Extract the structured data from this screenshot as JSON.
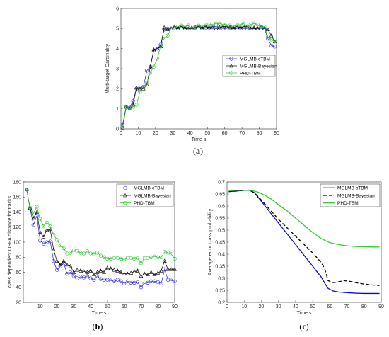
{
  "chart_data": [
    {
      "type": "line",
      "panel_label": "a",
      "xlabel": "Time s",
      "ylabel": "Multi-target Cardinality",
      "xlim": [
        0,
        90
      ],
      "ylim": [
        0,
        6
      ],
      "xticks": [
        0,
        10,
        20,
        30,
        40,
        50,
        60,
        70,
        80,
        90
      ],
      "yticks": [
        0,
        1,
        2,
        3,
        4,
        5,
        6
      ],
      "legend": "right",
      "grid": false,
      "x": [
        1,
        3,
        5,
        7,
        9,
        11,
        13,
        15,
        17,
        19,
        21,
        23,
        25,
        27,
        29,
        31,
        33,
        35,
        37,
        39,
        41,
        43,
        45,
        47,
        49,
        51,
        53,
        55,
        57,
        59,
        61,
        63,
        65,
        67,
        69,
        71,
        73,
        75,
        77,
        79,
        81,
        83,
        85,
        87,
        89
      ],
      "series": [
        {
          "name": "MGLMB-cTBM",
          "color": "#2020d0",
          "marker": "circle",
          "dash": "",
          "values": [
            0.2,
            1.1,
            1.05,
            1.4,
            2.0,
            2.05,
            2.1,
            2.9,
            3.1,
            3.9,
            4.0,
            4.2,
            4.95,
            5.0,
            5.0,
            5.05,
            5.0,
            5.1,
            5.0,
            5.05,
            5.0,
            5.05,
            5.1,
            5.0,
            5.05,
            5.05,
            5.1,
            5.1,
            5.05,
            5.0,
            5.0,
            5.05,
            5.0,
            5.0,
            5.05,
            5.0,
            5.0,
            5.05,
            5.0,
            5.0,
            5.0,
            5.0,
            4.5,
            4.15,
            4.1
          ]
        },
        {
          "name": "MGLMB-Bayesian",
          "color": "#000000",
          "marker": "triangle",
          "dash": "",
          "values": [
            0.05,
            1.1,
            1.0,
            1.2,
            2.05,
            2.0,
            2.0,
            2.2,
            3.1,
            3.95,
            4.0,
            4.1,
            5.05,
            4.95,
            5.0,
            5.1,
            5.05,
            5.1,
            5.05,
            5.0,
            5.05,
            5.05,
            5.1,
            5.05,
            5.1,
            5.05,
            5.05,
            5.0,
            5.05,
            5.1,
            5.1,
            5.05,
            5.05,
            5.1,
            5.05,
            5.1,
            5.1,
            5.0,
            5.05,
            5.0,
            5.1,
            5.0,
            4.95,
            4.65,
            4.35
          ]
        },
        {
          "name": "PHD-TBM",
          "color": "#20c020",
          "marker": "circle",
          "dash": "",
          "values": [
            0.05,
            1.05,
            1.0,
            1.1,
            1.2,
            1.85,
            2.1,
            2.3,
            2.8,
            3.1,
            3.5,
            4.15,
            4.5,
            4.65,
            5.0,
            5.05,
            5.1,
            5.15,
            5.1,
            5.15,
            5.0,
            5.1,
            5.15,
            5.1,
            5.15,
            5.2,
            5.2,
            5.25,
            5.25,
            5.2,
            5.2,
            5.15,
            5.1,
            5.15,
            5.2,
            5.25,
            5.1,
            5.2,
            5.25,
            5.2,
            5.1,
            5.1,
            4.6,
            4.45,
            4.35
          ]
        }
      ]
    },
    {
      "type": "line",
      "panel_label": "b",
      "xlabel": "Time s",
      "ylabel": "class dependent OSPA distance for tracks",
      "xlim": [
        0,
        90
      ],
      "ylim": [
        20,
        180
      ],
      "xticks": [
        10,
        20,
        30,
        40,
        50,
        60,
        70,
        80,
        90
      ],
      "yticks": [
        20,
        40,
        60,
        80,
        100,
        120,
        140,
        160,
        180
      ],
      "legend": "top-right",
      "grid": false,
      "x": [
        2,
        4,
        6,
        8,
        10,
        12,
        14,
        16,
        18,
        20,
        22,
        24,
        26,
        28,
        30,
        32,
        34,
        36,
        38,
        40,
        42,
        44,
        46,
        48,
        50,
        52,
        54,
        56,
        58,
        60,
        62,
        64,
        66,
        68,
        70,
        72,
        74,
        76,
        78,
        80,
        82,
        84,
        86,
        88,
        90
      ],
      "series": [
        {
          "name": "MGLMB-cTBM",
          "color": "#2020d0",
          "marker": "circle",
          "dash": "",
          "values": [
            170,
            145,
            123,
            135,
            102,
            98,
            100,
            101,
            75,
            63,
            68,
            72,
            58,
            60,
            55,
            52,
            54,
            53,
            55,
            52,
            50,
            55,
            51,
            50,
            50,
            49,
            48,
            50,
            48,
            45,
            48,
            46,
            46,
            47,
            40,
            45,
            46,
            48,
            48,
            47,
            45,
            64,
            50,
            49,
            48
          ]
        },
        {
          "name": "MGLMB-Bayesian",
          "color": "#000000",
          "marker": "triangle",
          "dash": "",
          "values": [
            170,
            145,
            132,
            140,
            113,
            107,
            116,
            117,
            90,
            75,
            70,
            75,
            70,
            68,
            60,
            63,
            62,
            61,
            60,
            62,
            57,
            60,
            62,
            60,
            66,
            65,
            63,
            62,
            60,
            58,
            58,
            59,
            61,
            62,
            55,
            58,
            57,
            60,
            57,
            59,
            62,
            75,
            64,
            64,
            64
          ]
        },
        {
          "name": "PHD-TBM",
          "color": "#20c020",
          "marker": "circle",
          "dash": "",
          "values": [
            170,
            146,
            138,
            147,
            131,
            121,
            126,
            121,
            110,
            103,
            96,
            92,
            85,
            86,
            89,
            88,
            86,
            85,
            88,
            85,
            84,
            86,
            82,
            80,
            78,
            78,
            79,
            79,
            78,
            77,
            79,
            79,
            78,
            79,
            72,
            79,
            79,
            80,
            81,
            80,
            80,
            87,
            86,
            84,
            78
          ]
        }
      ]
    },
    {
      "type": "line",
      "panel_label": "c",
      "xlabel": "Time s",
      "ylabel": "Average error class probability",
      "xlim": [
        0,
        90
      ],
      "ylim": [
        0.2,
        0.7
      ],
      "xticks": [
        0,
        10,
        20,
        30,
        40,
        50,
        60,
        70,
        80,
        90
      ],
      "yticks": [
        0.2,
        0.25,
        0.3,
        0.35,
        0.4,
        0.45,
        0.5,
        0.55,
        0.6,
        0.65,
        0.7
      ],
      "ytick_labels": [
        "0.2",
        "0.25",
        "0.3",
        "0.35",
        "0.4",
        "0.45",
        "0.5",
        "0.55",
        "0.6",
        "0.65",
        "0.7"
      ],
      "legend": "top-right",
      "grid": false,
      "series": [
        {
          "name": "MGLMB-cTBM",
          "color": "#0a0ac8",
          "marker": "none",
          "dash": "",
          "x": [
            1,
            5,
            10,
            13,
            16,
            20,
            25,
            30,
            35,
            40,
            45,
            50,
            55,
            57,
            59,
            62,
            65,
            70,
            75,
            80,
            85,
            89
          ],
          "values": [
            0.66,
            0.662,
            0.665,
            0.666,
            0.655,
            0.62,
            0.575,
            0.53,
            0.485,
            0.44,
            0.395,
            0.35,
            0.305,
            0.28,
            0.258,
            0.247,
            0.243,
            0.24,
            0.238,
            0.237,
            0.237,
            0.237
          ]
        },
        {
          "name": "MGLMB-Bayesian",
          "color": "#000000",
          "marker": "none",
          "dash": "5,3",
          "x": [
            1,
            5,
            10,
            13,
            16,
            20,
            25,
            30,
            35,
            40,
            45,
            50,
            55,
            57,
            59,
            62,
            65,
            68,
            71,
            75,
            80,
            85,
            89
          ],
          "values": [
            0.66,
            0.662,
            0.665,
            0.666,
            0.655,
            0.625,
            0.585,
            0.545,
            0.51,
            0.475,
            0.44,
            0.405,
            0.365,
            0.34,
            0.29,
            0.282,
            0.285,
            0.29,
            0.288,
            0.282,
            0.276,
            0.272,
            0.27
          ]
        },
        {
          "name": "PHD-TBM",
          "color": "#2ecf2e",
          "marker": "none",
          "dash": "",
          "x": [
            1,
            5,
            10,
            14,
            18,
            22,
            26,
            30,
            35,
            40,
            45,
            50,
            55,
            60,
            65,
            70,
            75,
            80,
            85,
            89
          ],
          "values": [
            0.664,
            0.665,
            0.666,
            0.665,
            0.658,
            0.645,
            0.628,
            0.605,
            0.58,
            0.55,
            0.52,
            0.49,
            0.465,
            0.448,
            0.44,
            0.435,
            0.432,
            0.431,
            0.43,
            0.43
          ]
        }
      ]
    }
  ]
}
